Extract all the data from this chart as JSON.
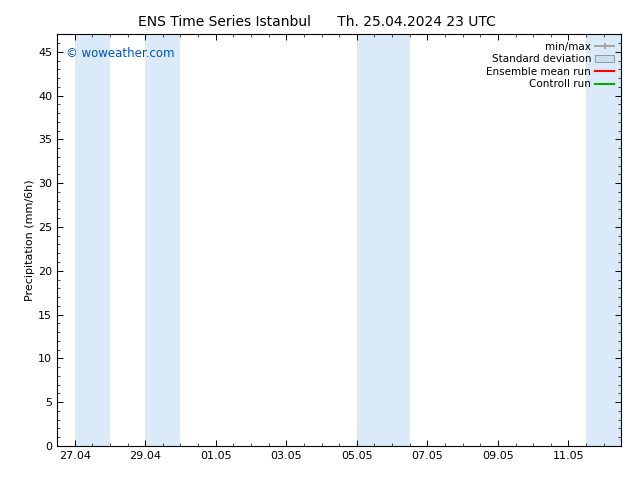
{
  "title_left": "ENS Time Series Istanbul",
  "title_right": "Th. 25.04.2024 23 UTC",
  "ylabel": "Precipitation (mm/6h)",
  "ylim": [
    0,
    47
  ],
  "yticks": [
    0,
    5,
    10,
    15,
    20,
    25,
    30,
    35,
    40,
    45
  ],
  "xtick_labels": [
    "27.04",
    "29.04",
    "01.05",
    "03.05",
    "05.05",
    "07.05",
    "09.05",
    "11.05"
  ],
  "shaded_bands": [
    [
      0.0,
      1.0
    ],
    [
      2.0,
      3.0
    ],
    [
      8.0,
      9.5
    ],
    [
      14.5,
      15.5
    ]
  ],
  "x_min": -0.5,
  "x_max": 15.5,
  "watermark": "© woweather.com",
  "watermark_color": "#0055bb",
  "plot_bg_color": "#ffffff",
  "shaded_color": "#daeaf8",
  "legend_entries": [
    {
      "label": "min/max",
      "color": "#999999",
      "type": "errorbar"
    },
    {
      "label": "Standard deviation",
      "color": "#c8dff0",
      "type": "bar"
    },
    {
      "label": "Ensemble mean run",
      "color": "#ff0000",
      "type": "line"
    },
    {
      "label": "Controll run",
      "color": "#00aa00",
      "type": "line"
    }
  ],
  "title_fontsize": 10,
  "axis_label_fontsize": 8,
  "tick_fontsize": 8,
  "legend_fontsize": 7.5
}
